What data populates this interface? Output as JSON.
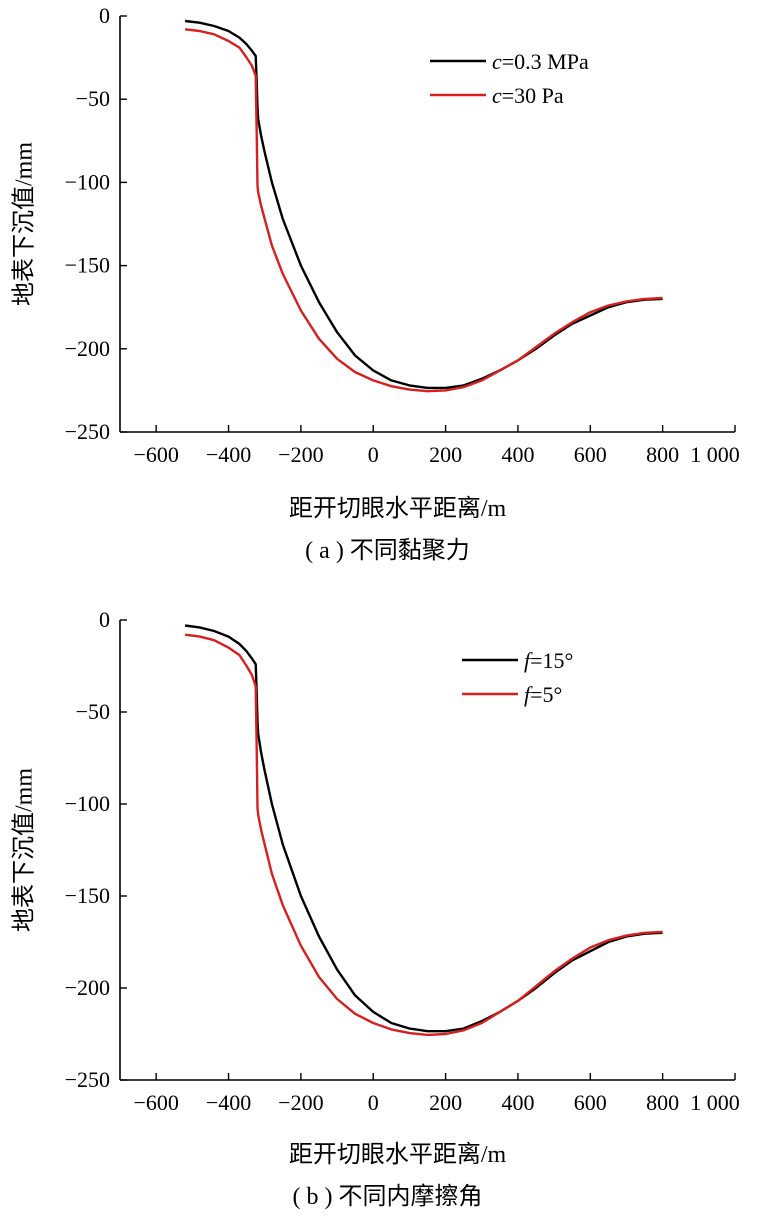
{
  "chart_data": [
    {
      "type": "line",
      "caption": "( a ) 不同黏聚力",
      "xlabel": "距开切眼水平距离/m",
      "ylabel": "地表下沉值/mm",
      "xlim": [
        -700,
        1000
      ],
      "ylim": [
        -250,
        0
      ],
      "xticks": [
        -600,
        -400,
        -200,
        0,
        200,
        400,
        600,
        800,
        1000
      ],
      "xtick_labels": [
        "−600",
        "−400",
        "−200",
        "0",
        "200",
        "400",
        "600",
        "800",
        "1 000"
      ],
      "yticks": [
        0,
        -50,
        -100,
        -150,
        -200,
        -250
      ],
      "ytick_labels": [
        "0",
        "−50",
        "−100",
        "−150",
        "−200",
        "−250"
      ],
      "legend_position": "top-right",
      "series": [
        {
          "name": "c=0.3 MPa",
          "name_italic": "c",
          "name_rest": "=0.3 MPa",
          "color": "#000000",
          "x": [
            -520,
            -480,
            -440,
            -400,
            -370,
            -350,
            -335,
            -325,
            -322,
            -320,
            -318,
            -310,
            -300,
            -280,
            -250,
            -200,
            -150,
            -100,
            -50,
            0,
            50,
            100,
            150,
            200,
            250,
            300,
            350,
            400,
            450,
            500,
            550,
            600,
            650,
            700,
            750,
            800
          ],
          "y": [
            -3,
            -4,
            -6,
            -9,
            -13,
            -17,
            -21,
            -24,
            -40,
            -55,
            -62,
            -72,
            -82,
            -100,
            -122,
            -150,
            -172,
            -190,
            -204,
            -213,
            -219,
            -222,
            -223.5,
            -223.5,
            -222,
            -218,
            -213,
            -207,
            -200,
            -192,
            -185,
            -180,
            -175,
            -172,
            -170.5,
            -170
          ]
        },
        {
          "name": "c=30 Pa",
          "name_italic": "c",
          "name_rest": "=30 Pa",
          "color": "#d62020",
          "x": [
            -520,
            -480,
            -440,
            -400,
            -370,
            -350,
            -335,
            -325,
            -322,
            -320,
            -318,
            -310,
            -300,
            -280,
            -250,
            -200,
            -150,
            -100,
            -50,
            0,
            50,
            100,
            150,
            200,
            250,
            300,
            350,
            400,
            450,
            500,
            550,
            600,
            650,
            700,
            750,
            800
          ],
          "y": [
            -8,
            -9,
            -11,
            -15,
            -19,
            -25,
            -30,
            -36,
            -70,
            -102,
            -106,
            -114,
            -122,
            -138,
            -155,
            -177,
            -194,
            -206,
            -214,
            -219,
            -222.5,
            -224.5,
            -225.5,
            -225,
            -223,
            -219,
            -213,
            -207,
            -199,
            -191,
            -184,
            -178,
            -174,
            -171.5,
            -170,
            -169.5
          ]
        }
      ]
    },
    {
      "type": "line",
      "caption": "( b ) 不同内摩擦角",
      "xlabel": "距开切眼水平距离/m",
      "ylabel": "地表下沉值/mm",
      "xlim": [
        -700,
        1000
      ],
      "ylim": [
        -250,
        0
      ],
      "xticks": [
        -600,
        -400,
        -200,
        0,
        200,
        400,
        600,
        800,
        1000
      ],
      "xtick_labels": [
        "−600",
        "−400",
        "−200",
        "0",
        "200",
        "400",
        "600",
        "800",
        "1 000"
      ],
      "yticks": [
        0,
        -50,
        -100,
        -150,
        -200,
        -250
      ],
      "ytick_labels": [
        "0",
        "−50",
        "−100",
        "−150",
        "−200",
        "−250"
      ],
      "legend_position": "top-right",
      "series": [
        {
          "name": "f=15°",
          "name_italic": "f",
          "name_rest": "=15°",
          "color": "#000000",
          "x": [
            -520,
            -480,
            -440,
            -400,
            -370,
            -350,
            -335,
            -325,
            -322,
            -320,
            -318,
            -310,
            -300,
            -280,
            -250,
            -200,
            -150,
            -100,
            -50,
            0,
            50,
            100,
            150,
            200,
            250,
            300,
            350,
            400,
            450,
            500,
            550,
            600,
            650,
            700,
            750,
            800
          ],
          "y": [
            -3,
            -4,
            -6,
            -9,
            -13,
            -17,
            -21,
            -24,
            -40,
            -55,
            -62,
            -72,
            -82,
            -100,
            -122,
            -150,
            -172,
            -190,
            -204,
            -213,
            -219,
            -222,
            -223.5,
            -223.5,
            -222,
            -218,
            -213,
            -207,
            -200,
            -192,
            -185,
            -180,
            -175,
            -172,
            -170.5,
            -170
          ]
        },
        {
          "name": "f=5°",
          "name_italic": "f",
          "name_rest": "=5°",
          "color": "#d62020",
          "x": [
            -520,
            -480,
            -440,
            -400,
            -370,
            -350,
            -335,
            -325,
            -322,
            -320,
            -318,
            -310,
            -300,
            -280,
            -250,
            -200,
            -150,
            -100,
            -50,
            0,
            50,
            100,
            150,
            200,
            250,
            300,
            350,
            400,
            450,
            500,
            550,
            600,
            650,
            700,
            750,
            800
          ],
          "y": [
            -8,
            -9,
            -11,
            -15,
            -19,
            -25,
            -30,
            -36,
            -70,
            -102,
            -106,
            -114,
            -122,
            -138,
            -155,
            -177,
            -194,
            -206,
            -214,
            -219,
            -222.5,
            -224.5,
            -225.5,
            -225,
            -223,
            -219,
            -213,
            -207,
            -199,
            -191,
            -184,
            -178,
            -174,
            -171.5,
            -170,
            -169.5
          ]
        }
      ]
    }
  ]
}
